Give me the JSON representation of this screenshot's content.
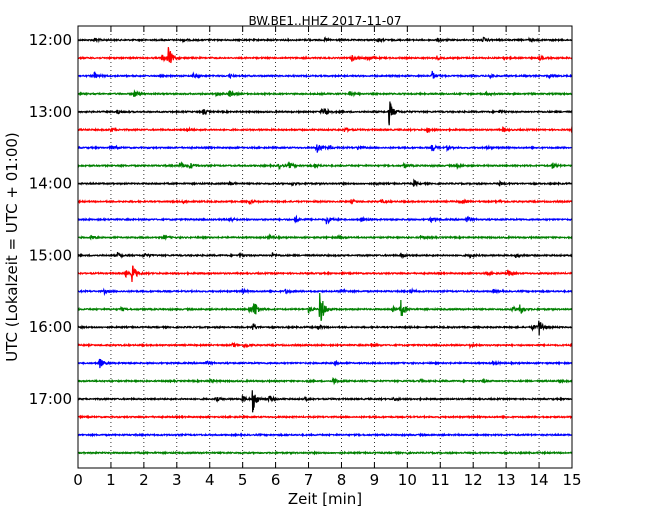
{
  "chart_data": {
    "type": "line",
    "title": "BW.BE1..HHZ 2017-11-07",
    "xlabel": "Zeit  [min]",
    "ylabel": "UTC (Lokalzeit = UTC + 01:00)",
    "xlim": [
      0,
      15
    ],
    "x_ticks": [
      0,
      1,
      2,
      3,
      4,
      5,
      6,
      7,
      8,
      9,
      10,
      11,
      12,
      13,
      14,
      15
    ],
    "x_tick_labels": [
      "0",
      "1",
      "2",
      "3",
      "4",
      "5",
      "6",
      "7",
      "8",
      "9",
      "10",
      "11",
      "12",
      "13",
      "14",
      "15"
    ],
    "y_tick_labels": [
      "12:00",
      "13:00",
      "14:00",
      "15:00",
      "16:00",
      "17:00"
    ],
    "y_tick_traces": [
      0,
      4,
      8,
      12,
      16,
      20
    ],
    "trace_interval_min": 15,
    "grid_x": "dotted",
    "trace_colors": [
      "#000000",
      "#ff0000",
      "#0000ff",
      "#008000"
    ],
    "series": [
      {
        "start": "12:00",
        "events": [
          [
            0.5,
            0.3
          ],
          [
            3.2,
            0.25
          ],
          [
            7.5,
            0.25
          ],
          [
            9.1,
            0.3
          ],
          [
            10.9,
            0.25
          ],
          [
            12.3,
            0.4
          ],
          [
            13.7,
            0.25
          ]
        ]
      },
      {
        "start": "12:15",
        "events": [
          [
            2.75,
            1.6
          ],
          [
            2.55,
            0.5
          ],
          [
            8.3,
            0.5
          ],
          [
            8.8,
            0.5
          ],
          [
            10.9,
            0.3
          ],
          [
            12.9,
            0.3
          ],
          [
            14.0,
            0.3
          ]
        ]
      },
      {
        "start": "12:30",
        "events": [
          [
            0.5,
            0.5
          ],
          [
            3.5,
            0.3
          ],
          [
            4.6,
            0.3
          ],
          [
            10.75,
            0.7
          ],
          [
            12.5,
            0.3
          ],
          [
            14.3,
            0.25
          ]
        ]
      },
      {
        "start": "12:45",
        "events": [
          [
            1.7,
            0.6
          ],
          [
            4.6,
            0.55
          ],
          [
            4.2,
            0.3
          ],
          [
            8.25,
            0.45
          ],
          [
            12.4,
            0.3
          ]
        ]
      },
      {
        "start": "13:00",
        "events": [
          [
            1.2,
            0.3
          ],
          [
            3.8,
            0.4
          ],
          [
            7.5,
            0.65
          ],
          [
            7.4,
            0.3
          ],
          [
            9.45,
            1.9
          ],
          [
            12.8,
            0.3
          ]
        ]
      },
      {
        "start": "13:15",
        "events": [
          [
            1.0,
            0.3
          ],
          [
            3.3,
            0.3
          ],
          [
            8.1,
            0.35
          ],
          [
            10.6,
            0.45
          ],
          [
            12.9,
            0.3
          ],
          [
            15.0,
            0.4
          ]
        ]
      },
      {
        "start": "13:30",
        "events": [
          [
            1.0,
            0.3
          ],
          [
            7.25,
            1.0
          ],
          [
            7.6,
            0.4
          ],
          [
            8.5,
            0.3
          ],
          [
            10.75,
            0.5
          ],
          [
            11.2,
            0.3
          ],
          [
            12.4,
            0.3
          ]
        ]
      },
      {
        "start": "13:45",
        "events": [
          [
            3.1,
            0.55
          ],
          [
            3.4,
            0.5
          ],
          [
            6.1,
            0.35
          ],
          [
            6.4,
            0.5
          ],
          [
            7.2,
            0.3
          ],
          [
            9.9,
            0.3
          ],
          [
            11.5,
            0.3
          ],
          [
            14.4,
            0.5
          ]
        ]
      },
      {
        "start": "14:00",
        "events": [
          [
            4.6,
            0.25
          ],
          [
            6.5,
            0.25
          ],
          [
            9.0,
            0.2
          ],
          [
            10.2,
            0.45
          ],
          [
            12.8,
            0.3
          ]
        ]
      },
      {
        "start": "14:15",
        "events": [
          [
            3.2,
            0.3
          ],
          [
            5.2,
            0.3
          ],
          [
            8.3,
            0.3
          ],
          [
            9.2,
            0.3
          ],
          [
            11.6,
            0.4
          ],
          [
            12.8,
            0.25
          ]
        ]
      },
      {
        "start": "14:30",
        "events": [
          [
            4.6,
            0.4
          ],
          [
            6.6,
            0.5
          ],
          [
            7.55,
            0.7
          ],
          [
            8.6,
            0.3
          ],
          [
            10.7,
            0.4
          ],
          [
            11.8,
            0.55
          ]
        ]
      },
      {
        "start": "14:45",
        "events": [
          [
            0.4,
            0.3
          ],
          [
            2.6,
            0.3
          ],
          [
            5.8,
            0.3
          ],
          [
            7.9,
            0.3
          ],
          [
            10.4,
            0.3
          ]
        ]
      },
      {
        "start": "15:00",
        "events": [
          [
            1.2,
            0.4
          ],
          [
            2.0,
            0.4
          ],
          [
            4.9,
            0.3
          ],
          [
            5.9,
            0.3
          ],
          [
            9.8,
            0.3
          ],
          [
            11.9,
            0.3
          ],
          [
            13.3,
            0.3
          ]
        ]
      },
      {
        "start": "15:15",
        "events": [
          [
            1.65,
            1.4
          ],
          [
            1.45,
            0.5
          ],
          [
            13.05,
            0.5
          ],
          [
            12.4,
            0.2
          ]
        ]
      },
      {
        "start": "15:30",
        "events": [
          [
            0.8,
            0.3
          ],
          [
            5.0,
            0.3
          ],
          [
            6.3,
            0.3
          ],
          [
            8.0,
            0.3
          ],
          [
            10.1,
            0.3
          ],
          [
            12.6,
            0.3
          ]
        ]
      },
      {
        "start": "15:45",
        "events": [
          [
            5.35,
            1.3
          ],
          [
            5.2,
            0.5
          ],
          [
            7.35,
            3.0
          ],
          [
            7.0,
            0.5
          ],
          [
            9.8,
            1.5
          ],
          [
            9.55,
            0.5
          ],
          [
            13.4,
            1.0
          ],
          [
            13.2,
            0.4
          ],
          [
            1.3,
            0.3
          ]
        ]
      },
      {
        "start": "16:00",
        "events": [
          [
            5.3,
            0.6
          ],
          [
            7.3,
            0.4
          ],
          [
            14.0,
            1.3
          ],
          [
            13.8,
            0.4
          ]
        ]
      },
      {
        "start": "16:15",
        "events": [
          [
            5.05,
            0.5
          ],
          [
            4.7,
            0.3
          ],
          [
            8.9,
            0.25
          ],
          [
            11.9,
            0.25
          ]
        ]
      },
      {
        "start": "16:30",
        "events": [
          [
            0.65,
            0.8
          ],
          [
            3.9,
            0.3
          ],
          [
            7.8,
            0.3
          ],
          [
            12.6,
            0.25
          ]
        ]
      },
      {
        "start": "16:45",
        "events": [
          [
            4.0,
            0.3
          ],
          [
            7.75,
            0.5
          ],
          [
            10.4,
            0.3
          ],
          [
            12.3,
            0.25
          ],
          [
            14.6,
            0.25
          ]
        ]
      },
      {
        "start": "17:00",
        "events": [
          [
            5.3,
            2.0
          ],
          [
            5.0,
            0.5
          ],
          [
            5.8,
            0.5
          ],
          [
            4.2,
            0.3
          ],
          [
            6.9,
            0.3
          ],
          [
            9.6,
            0.3
          ]
        ]
      },
      {
        "start": "17:15",
        "events": []
      },
      {
        "start": "17:30",
        "events": []
      },
      {
        "start": "17:45",
        "events": []
      }
    ]
  }
}
